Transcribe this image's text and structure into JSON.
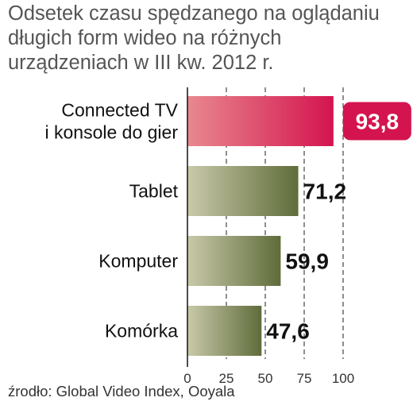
{
  "title_lines": [
    "Odsetek czasu spędzanego na oglądaniu",
    "długich form wideo na różnych",
    "urządzeniach w III kw. 2012 r."
  ],
  "source": "źrodło: Global Video Index, Ooyala",
  "colors": {
    "highlight_start": "#e8888f",
    "highlight_end": "#d4144f",
    "bar_start": "#c9c9aa",
    "bar_end": "#5f6c3a",
    "grid": "#444444"
  },
  "chart_data": {
    "type": "bar",
    "orientation": "horizontal",
    "title": "Odsetek czasu spędzanego na oglądaniu długich form wideo na różnych urządzeniach w III kw. 2012 r.",
    "categories": [
      [
        "Connected TV",
        "i konsole do gier"
      ],
      [
        "Tablet"
      ],
      [
        "Komputer"
      ],
      [
        "Komórka"
      ]
    ],
    "values": [
      93.8,
      71.2,
      59.9,
      47.6
    ],
    "value_labels": [
      "93,8",
      "71,2",
      "59,9",
      "47,6"
    ],
    "highlight_index": 0,
    "xlim": [
      0,
      100
    ],
    "xticks": [
      0,
      25,
      50,
      75,
      100
    ],
    "xtick_labels": [
      "0",
      "25",
      "50",
      "75",
      "100"
    ],
    "grid": "vertical dashed"
  }
}
